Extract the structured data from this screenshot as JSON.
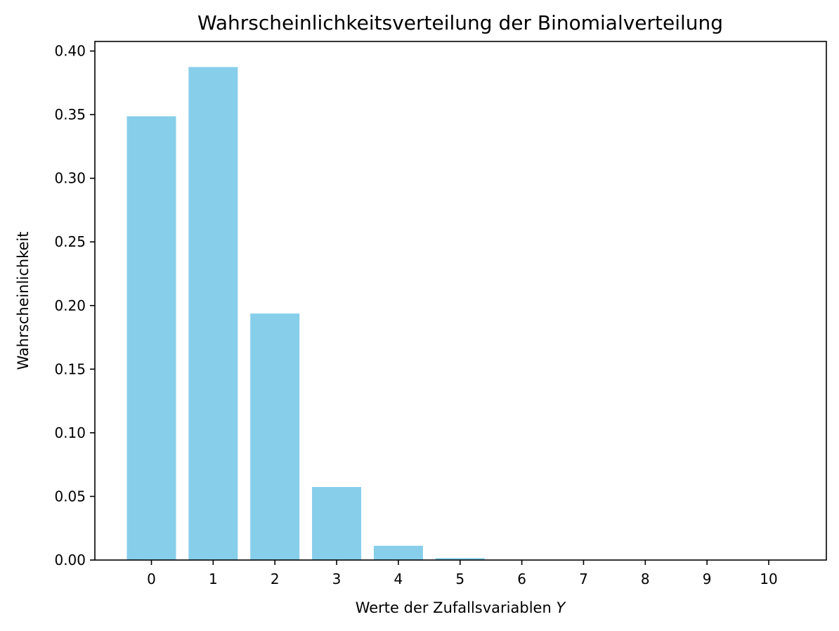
{
  "chart_data": {
    "type": "bar",
    "title": "Wahrscheinlichkeitsverteilung der Binomialverteilung",
    "xlabel_prefix": "Werte der Zufallsvariablen ",
    "xlabel_variable": "Y",
    "ylabel": "Wahrscheinlichkeit",
    "categories": [
      "0",
      "1",
      "2",
      "3",
      "4",
      "5",
      "6",
      "7",
      "8",
      "9",
      "10"
    ],
    "values": [
      0.3487,
      0.3874,
      0.1937,
      0.0574,
      0.0112,
      0.0015,
      0.0001,
      0.0,
      0.0,
      0.0,
      0.0
    ],
    "ylim": [
      0,
      0.4075
    ],
    "yticks": [
      "0.00",
      "0.05",
      "0.10",
      "0.15",
      "0.20",
      "0.25",
      "0.30",
      "0.35",
      "0.40"
    ],
    "bar_color": "#87CEEB",
    "grid": false,
    "legend": "none"
  }
}
